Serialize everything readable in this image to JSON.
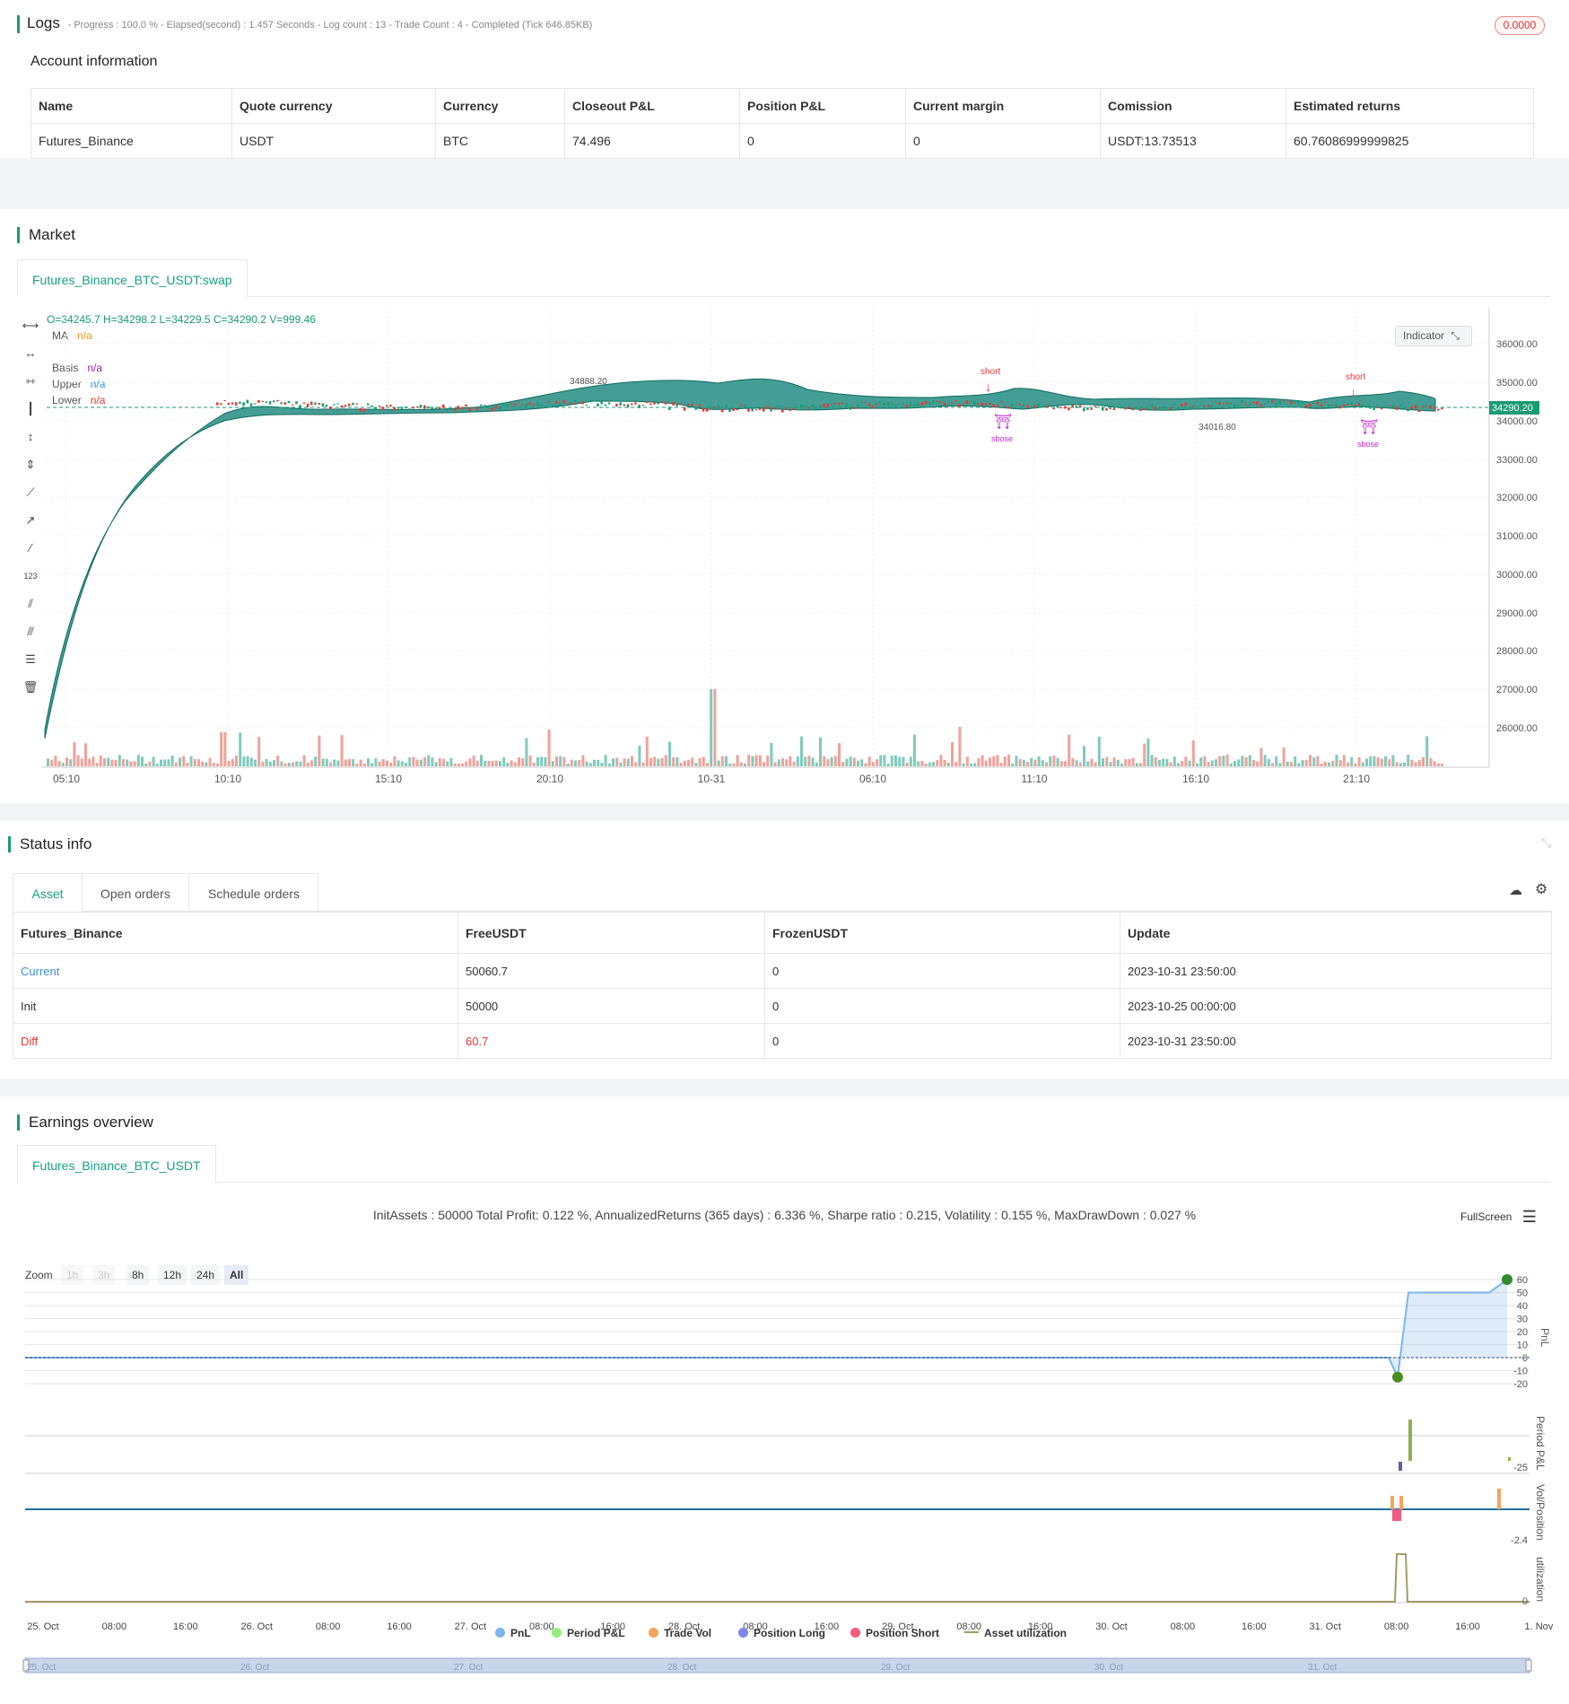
{
  "logs": {
    "title": "Logs",
    "status_line": "- Progress : 100.0 % - Elapsed(second) : 1.457  Seconds - Log count : 13 - Trade Count : 4 - Completed (Tick 646.85KB)",
    "badge": "0.0000"
  },
  "account": {
    "title": "Account information",
    "headers": [
      "Name",
      "Quote currency",
      "Currency",
      "Closeout P&L",
      "Position P&L",
      "Current margin",
      "Comission",
      "Estimated returns"
    ],
    "row": [
      "Futures_Binance",
      "USDT",
      "BTC",
      "74.496",
      "0",
      "0",
      "USDT:13.73513",
      "60.76086999999825"
    ]
  },
  "market": {
    "title": "Market",
    "tab": "Futures_Binance_BTC_USDT:swap",
    "ohlc": "O=34245.7 H=34298.2 L=34229.5 C=34290.2 V=999.46",
    "ma_label": "MA",
    "ma_val": "n/a",
    "basis_label": "Basis",
    "basis_val": "n/a",
    "upper_label": "Upper",
    "upper_val": "n/a",
    "lower_label": "Lower",
    "lower_val": "n/a",
    "indicator_btn": "Indicator",
    "price_tag": "34290.20",
    "high_label": "34888.20",
    "low_label": "34016.80",
    "short1": "short",
    "short2": "short",
    "close1": "sbose",
    "close2": "sbose",
    "y_ticks": [
      "36000.00",
      "35000.00",
      "34000.00",
      "33000.00",
      "32000.00",
      "31000.00",
      "30000.00",
      "29000.00",
      "28000.00",
      "27000.00",
      "26000.00"
    ],
    "x_ticks": [
      "05:10",
      "10:10",
      "15:10",
      "20:10",
      "10-31",
      "06:10",
      "11:10",
      "16:10",
      "21:10"
    ]
  },
  "status": {
    "title": "Status info",
    "tabs": [
      "Asset",
      "Open orders",
      "Schedule orders"
    ],
    "headers": [
      "Futures_Binance",
      "FreeUSDT",
      "FrozenUSDT",
      "Update"
    ],
    "rows": [
      [
        "Current",
        "50060.7",
        "0",
        "2023-10-31 23:50:00"
      ],
      [
        "Init",
        "50000",
        "0",
        "2023-10-25 00:00:00"
      ],
      [
        "Diff",
        "60.7",
        "0",
        "2023-10-31 23:50:00"
      ]
    ]
  },
  "earnings": {
    "title": "Earnings overview",
    "tab": "Futures_Binance_BTC_USDT",
    "summary": "InitAssets : 50000 Total Profit: 0.122 %, AnnualizedReturns (365 days) : 6.336 %, Sharpe ratio : 0.215, Volatility : 0.155 %, MaxDrawDown : 0.027 %",
    "fullscreen": "FullScreen",
    "zoom_label": "Zoom",
    "zoom_buttons": [
      "1h",
      "3h",
      "8h",
      "12h",
      "24h",
      "All"
    ],
    "pnl_ticks": [
      "60",
      "50",
      "40",
      "30",
      "20",
      "10",
      "0",
      "-10",
      "-20"
    ],
    "axis_pnl": "PnL",
    "axis_period": "Period P&L",
    "axis_vol": "Vol/Position",
    "axis_util": "utilization",
    "period_tick": "-25",
    "vol_tick": "-2.4",
    "util_tick": "0",
    "x_ticks": [
      "25. Oct",
      "08:00",
      "16:00",
      "26. Oct",
      "08:00",
      "16:00",
      "27. Oct",
      "08:00",
      "16:00",
      "28. Oct",
      "08:00",
      "16:00",
      "29. Oct",
      "08:00",
      "16:00",
      "30. Oct",
      "08:00",
      "16:00",
      "31. Oct",
      "08:00",
      "16:00",
      "1. Nov"
    ],
    "nav_ticks": [
      "25. Oct",
      "26. Oct",
      "27. Oct",
      "28. Oct",
      "29. Oct",
      "30. Oct",
      "31. Oct"
    ],
    "legend": [
      "PnL",
      "Period P&L",
      "Trade Vol",
      "Position Long",
      "Position Short",
      "Asset utilization"
    ],
    "legend_colors": [
      "#7cb5ec",
      "#90ed7d",
      "#f7a35c",
      "#8085e9",
      "#f15c80",
      "#a09b6a"
    ]
  },
  "chart_data": [
    {
      "type": "line",
      "title": "",
      "xlabel": "",
      "ylabel": "PnL",
      "ylim": [
        -20,
        60
      ],
      "x": [
        "25. Oct",
        "31. Oct 08:00",
        "31. Oct 10:00",
        "31. Oct 10:30",
        "1. Nov"
      ],
      "series": [
        {
          "name": "PnL",
          "values": [
            0,
            0,
            -15,
            50,
            60
          ]
        }
      ]
    }
  ]
}
